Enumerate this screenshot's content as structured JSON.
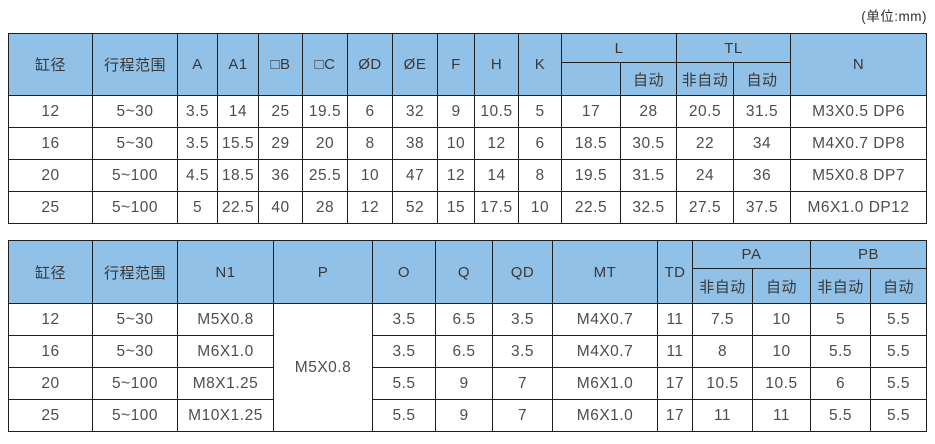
{
  "page": {
    "unit_label": "(单位:mm)"
  },
  "table1": {
    "header": {
      "bore": "缸径",
      "stroke": "行程范围",
      "a": "A",
      "a1": "A1",
      "b": "□B",
      "c": "□C",
      "d": "ØD",
      "e": "ØE",
      "f": "F",
      "h": "H",
      "k": "K",
      "l_group": "L",
      "tl_group": "TL",
      "n": "N",
      "l_sub1": "",
      "l_sub2": "自动",
      "tl_sub1": "非自动",
      "tl_sub2": "自动"
    },
    "rows": [
      [
        "12",
        "5~30",
        "3.5",
        "14",
        "25",
        "19.5",
        "6",
        "32",
        "9",
        "10.5",
        "5",
        "17",
        "28",
        "20.5",
        "31.5",
        "M3X0.5 DP6"
      ],
      [
        "16",
        "5~30",
        "3.5",
        "15.5",
        "29",
        "20",
        "8",
        "38",
        "10",
        "12",
        "6",
        "18.5",
        "30.5",
        "22",
        "34",
        "M4X0.7 DP8"
      ],
      [
        "20",
        "5~100",
        "4.5",
        "18.5",
        "36",
        "25.5",
        "10",
        "47",
        "12",
        "14",
        "8",
        "19.5",
        "31.5",
        "24",
        "36",
        "M5X0.8 DP7"
      ],
      [
        "25",
        "5~100",
        "5",
        "22.5",
        "40",
        "28",
        "12",
        "52",
        "15",
        "17.5",
        "10",
        "22.5",
        "32.5",
        "27.5",
        "37.5",
        "M6X1.0 DP12"
      ]
    ]
  },
  "table2": {
    "header": {
      "bore": "缸径",
      "stroke": "行程范围",
      "n1": "N1",
      "p": "P",
      "o": "O",
      "q": "Q",
      "qd": "QD",
      "mt": "MT",
      "td": "TD",
      "pa_group": "PA",
      "pb_group": "PB",
      "pa_sub1": "非自动",
      "pa_sub2": "自动",
      "pb_sub1": "非自动",
      "pb_sub2": "自动"
    },
    "rows": [
      [
        "12",
        "5~30",
        "M5X0.8",
        {
          "v": "M5X0.8",
          "rowspan": 4
        },
        "3.5",
        "6.5",
        "3.5",
        "M4X0.7",
        "11",
        "7.5",
        "10",
        "5",
        "5.5"
      ],
      [
        "16",
        "5~30",
        "M6X1.0",
        "3.5",
        "6.5",
        "3.5",
        "M4X0.7",
        "11",
        "8",
        "10",
        "5.5",
        "5.5"
      ],
      [
        "20",
        "5~100",
        "M8X1.25",
        "5.5",
        "9",
        "7",
        "M6X1.0",
        "17",
        "10.5",
        "10.5",
        "6",
        "5.5"
      ],
      [
        "25",
        "5~100",
        "M10X1.25",
        "5.5",
        "9",
        "7",
        "M6X1.0",
        "17",
        "11",
        "11",
        "5.5",
        "5.5"
      ]
    ]
  }
}
